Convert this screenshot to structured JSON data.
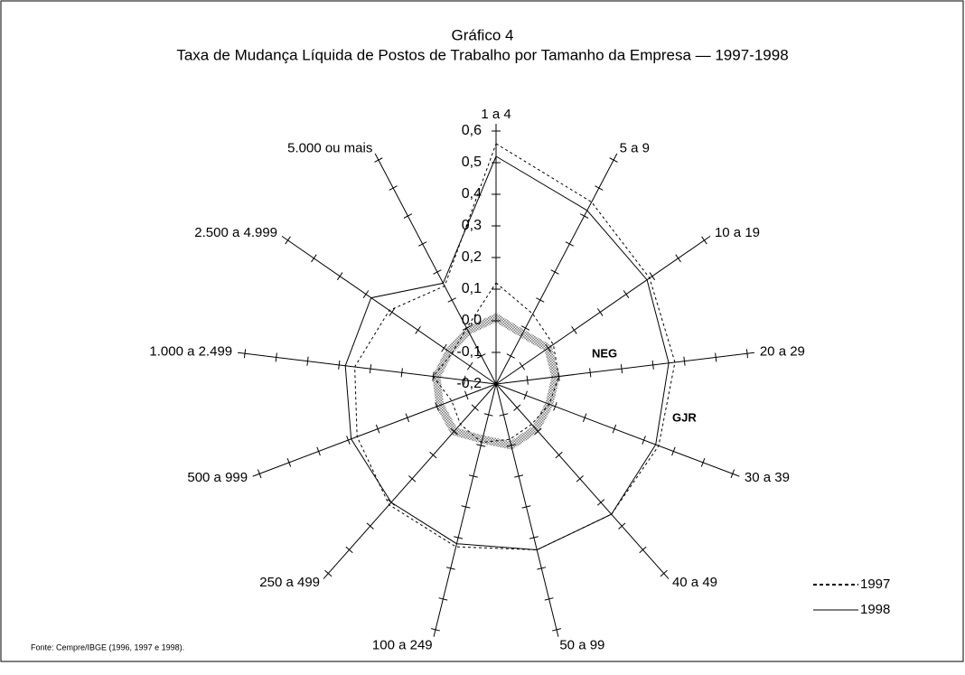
{
  "chart_data": {
    "type": "radar",
    "title": "Gráfico 4",
    "subtitle": "Taxa de Mudança Líquida de Postos de Trabalho por Tamanho da Empresa — 1997-1998",
    "categories": [
      "1 a 4",
      "5 a 9",
      "10 a 19",
      "20 a 29",
      "30 a 39",
      "40 a 49",
      "50 a 99",
      "100 a 249",
      "250 a 499",
      "500 a 999",
      "1.000 a 2.499",
      "2.500 a 4.999",
      "5.000 ou mais"
    ],
    "ylim": [
      -0.2,
      0.6
    ],
    "yticks": [
      {
        "value": -0.2,
        "label": "-0,2"
      },
      {
        "value": -0.1,
        "label": "-0,1"
      },
      {
        "value": 0,
        "label": "0,0"
      },
      {
        "value": 0.1,
        "label": "0,1"
      },
      {
        "value": 0.2,
        "label": "0,2"
      },
      {
        "value": 0.3,
        "label": "0,3"
      },
      {
        "value": 0.4,
        "label": "0,4"
      },
      {
        "value": 0.5,
        "label": "0,5"
      },
      {
        "value": 0.6,
        "label": "0,6"
      }
    ],
    "series": [
      {
        "name": "1997",
        "color": "#000000",
        "line_style": "dotted",
        "values": [
          0.56,
          0.45,
          0.39,
          0.37,
          0.35,
          0.35,
          0.34,
          0.33,
          0.31,
          0.27,
          0.25,
          0.21,
          0.15
        ]
      },
      {
        "name": "1998",
        "color": "#000000",
        "line_style": "solid",
        "values": [
          0.52,
          0.42,
          0.38,
          0.35,
          0.34,
          0.35,
          0.34,
          0.32,
          0.3,
          0.29,
          0.28,
          0.28,
          0.16
        ]
      },
      {
        "color": "#9a9a9a",
        "line_style": "shaded",
        "values": [
          0.01,
          -0.02,
          0.0,
          -0.01,
          -0.02,
          -0.01,
          0.0,
          -0.02,
          0.0,
          -0.01,
          -0.01,
          -0.02,
          -0.01
        ]
      },
      {
        "color": "#000000",
        "line_style": "dotted",
        "values": [
          0.12,
          0.05,
          0.02,
          0.0,
          -0.02,
          -0.03,
          -0.02,
          -0.01,
          -0.03,
          -0.05,
          0.0,
          -0.03,
          0.0
        ]
      }
    ],
    "annotations": [
      "NEG",
      "GJR"
    ],
    "source": "Fonte: Cempre/IBGE (1996, 1997 e 1998)."
  }
}
